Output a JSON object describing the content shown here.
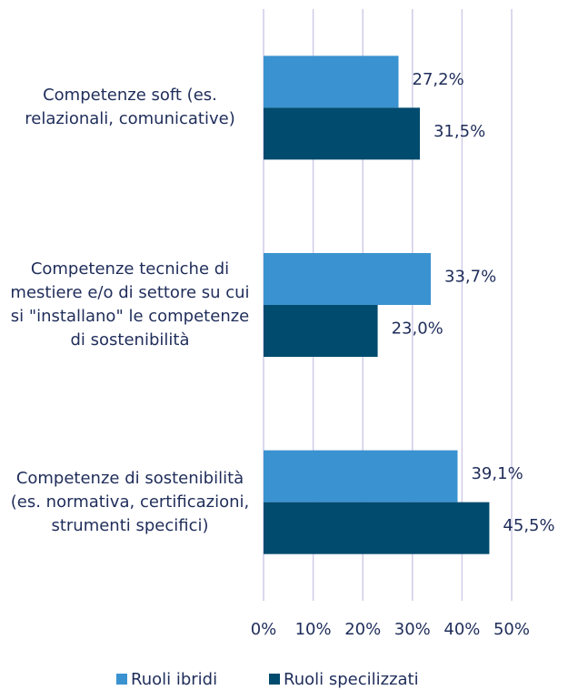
{
  "chart_data": {
    "type": "bar",
    "orientation": "horizontal",
    "categories": [
      "Competenze soft (es. relazionali, comunicative)",
      "Competenze tecniche di mestiere e/o di settore su cui si \"installano\" le competenze di sostenibilità",
      "Competenze di sostenibilità (es. normativa, certificazioni, strumenti specifici)"
    ],
    "series": [
      {
        "name": "Ruoli ibridi",
        "color": "#3a93d0",
        "values": [
          27.2,
          33.7,
          39.1
        ],
        "value_labels": [
          "27,2%",
          "33,7%",
          "39,1%"
        ]
      },
      {
        "name": "Ruoli specilizzati",
        "color": "#004b6e",
        "values": [
          31.5,
          23.0,
          45.5
        ],
        "value_labels": [
          "31,5%",
          "23,0%",
          "45,5%"
        ]
      }
    ],
    "xlim": [
      0,
      50
    ],
    "xticks": [
      {
        "value": 0,
        "label": "0%"
      },
      {
        "value": 10,
        "label": "10%"
      },
      {
        "value": 20,
        "label": "20%"
      },
      {
        "value": 30,
        "label": "30%"
      },
      {
        "value": 40,
        "label": "40%"
      },
      {
        "value": 50,
        "label": "50%"
      }
    ],
    "grid": true,
    "legend": "bottom"
  }
}
